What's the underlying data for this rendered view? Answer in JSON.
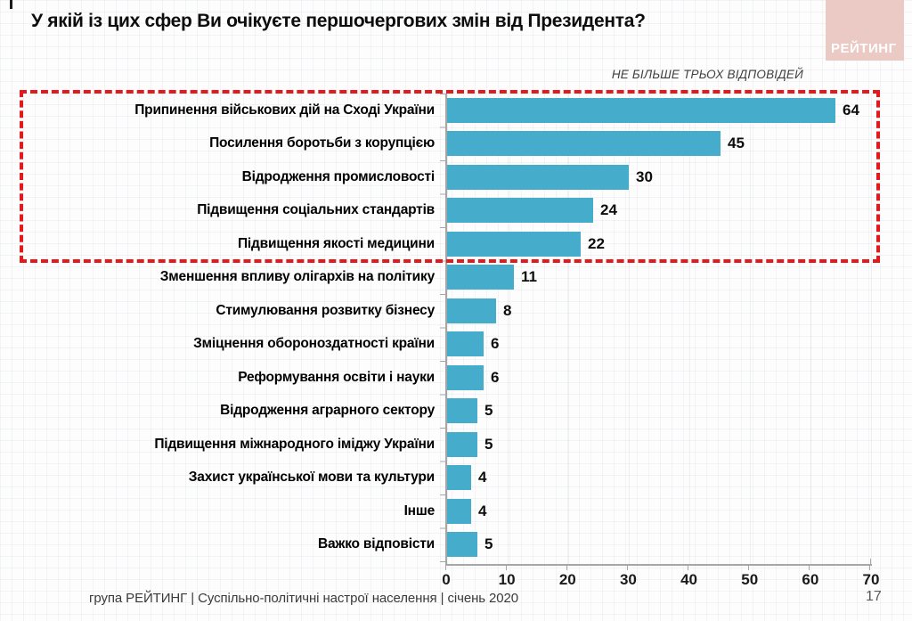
{
  "slide": {
    "title": "У якій із цих сфер Ви очікуєте першочергових змін від Президента?",
    "note": "НЕ БІЛЬШЕ ТРЬОХ ВІДПОВІДЕЙ",
    "logo_text": "РЕЙТИНГ",
    "footer": "група РЕЙТИНГ | Суспільно-політичні настрої населення  | січень  2020",
    "page_number": "17"
  },
  "colors": {
    "bar": "#45accb",
    "highlight_border": "#e2191d",
    "logo_bg": "#ebc9c5",
    "axis": "#a6a6a6"
  },
  "chart_data": {
    "type": "bar",
    "orientation": "horizontal",
    "title": "У якій із цих сфер Ви очікуєте першочергових змін від Президента?",
    "annotation": "НЕ БІЛЬШЕ ТРЬОХ ВІДПОВІДЕЙ",
    "categories": [
      "Припинення військових дій на Сході України",
      "Посилення боротьби з корупцією",
      "Відродження промисловості",
      "Підвищення соціальних стандартів",
      "Підвищення якості медицини",
      "Зменшення впливу олігархів на політику",
      "Стимулювання розвитку бізнесу",
      "Зміцнення обороноздатності країни",
      "Реформування освіти і науки",
      "Відродження аграрного сектору",
      "Підвищення міжнародного іміджу України",
      "Захист української мови та культури",
      "Інше",
      "Важко відповісти"
    ],
    "values": [
      64,
      45,
      30,
      24,
      22,
      11,
      8,
      6,
      6,
      5,
      5,
      4,
      4,
      5
    ],
    "highlighted_top_n": 5,
    "xlim": [
      0,
      70
    ],
    "x_ticks": [
      0,
      10,
      20,
      30,
      40,
      50,
      60,
      70
    ],
    "xlabel": "",
    "ylabel": "",
    "grid": true,
    "legend": false
  }
}
